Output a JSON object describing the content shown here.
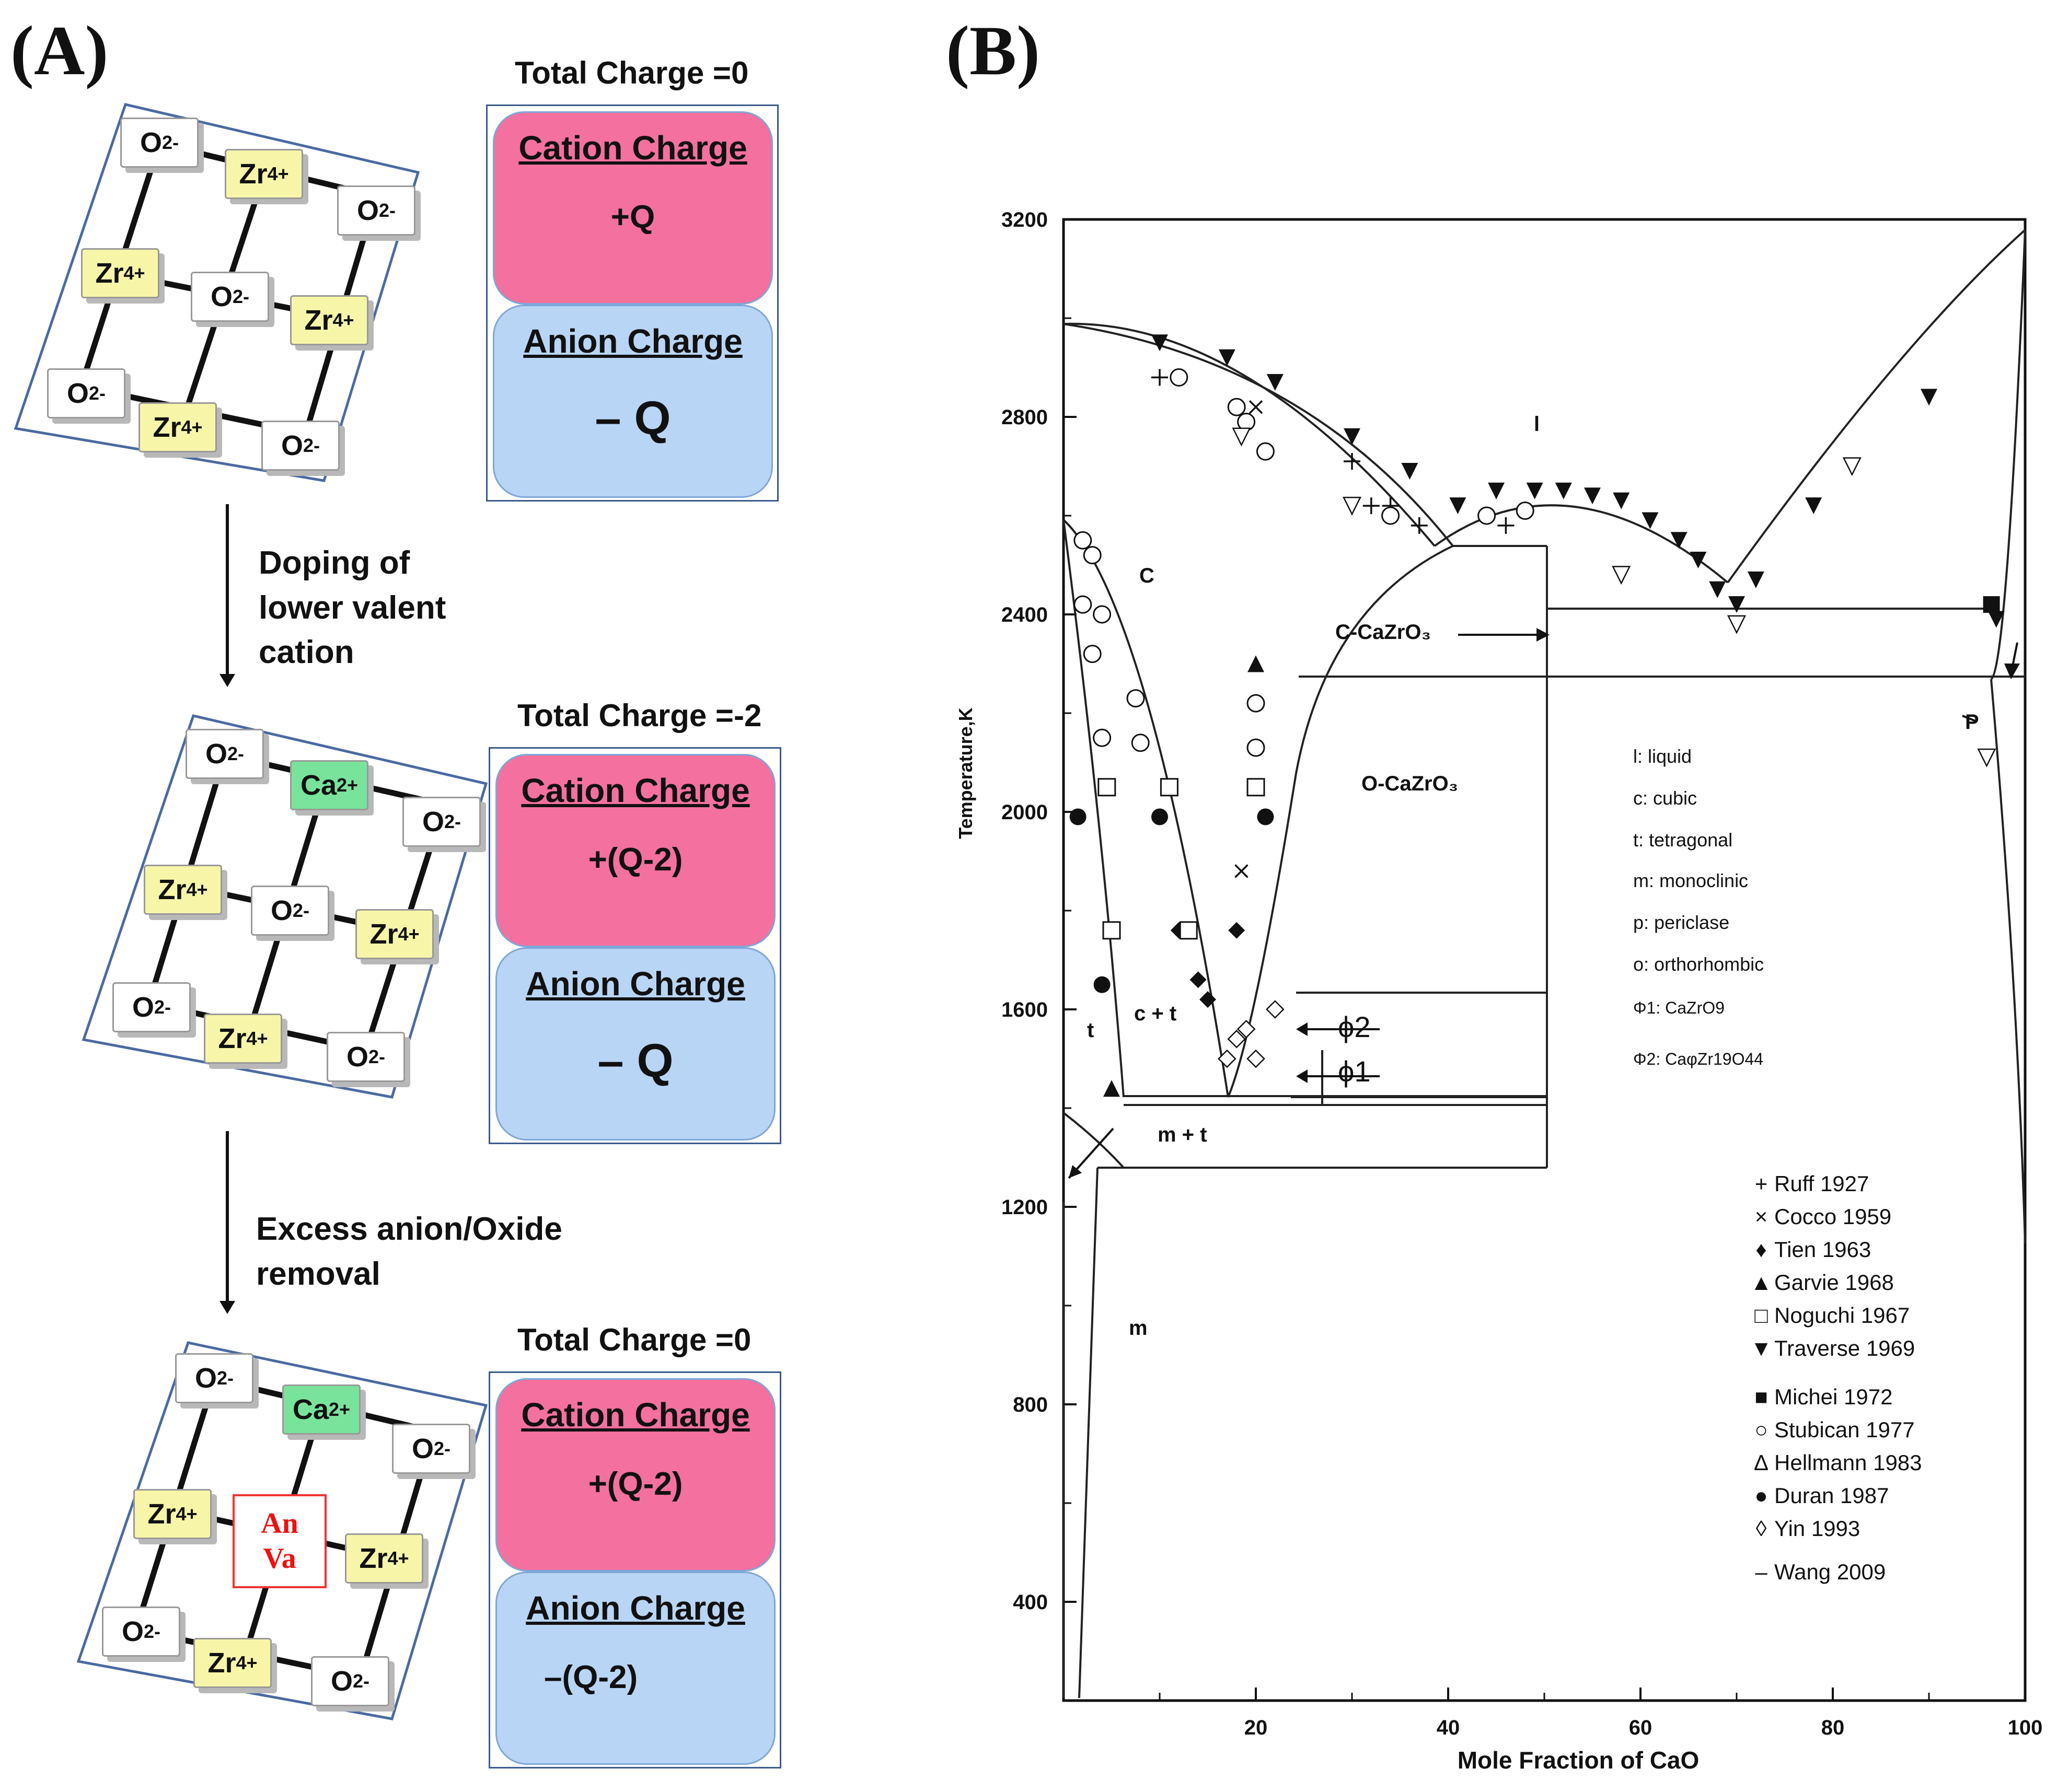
{
  "panel_a": {
    "label": "(A)",
    "o_ion": "O",
    "o_charge": "2-",
    "zr_ion": "Zr",
    "zr_charge": "4+",
    "ca_ion": "Ca",
    "ca_charge": "2+",
    "vacancy_line1": "An",
    "vacancy_line2": "Va",
    "states": [
      {
        "total": "Total Charge =0",
        "cation_title": "Cation Charge",
        "cation_value": "+Q",
        "anion_title": "Anion Charge",
        "anion_value": "– Q"
      },
      {
        "total": "Total Charge =-2",
        "cation_title": "Cation Charge",
        "cation_value": "+(Q-2)",
        "anion_title": "Anion Charge",
        "anion_value": "– Q"
      },
      {
        "total": "Total Charge =0",
        "cation_title": "Cation Charge",
        "cation_value": "+(Q-2)",
        "anion_title": "Anion Charge",
        "anion_value": "–(Q-2)"
      }
    ],
    "step1_lines": [
      "Doping of",
      "lower valent",
      "cation"
    ],
    "step2_lines": [
      "Excess anion/Oxide",
      "removal"
    ]
  },
  "panel_b": {
    "label": "(B)",
    "phase_legend": {
      "l": "l: liquid",
      "c": "c: cubic",
      "t": "t: tetragonal",
      "m": "m: monoclinic",
      "p": "p: periclase",
      "o": "o: orthorhombic",
      "phi1_prefix": "Φ1",
      "phi1_text": ": CaZrO9",
      "phi2_prefix": "Φ2",
      "phi2_text": ": CaφZr19O44"
    },
    "phase_labels": {
      "liquid": "l",
      "cubic": "C",
      "tetragonal": "t",
      "c_t": "c + t",
      "m_t": "m + t",
      "m": "m",
      "p": "P",
      "c_cazro3": "C-CaZrO₃",
      "o_cazro3": "O-CaZrO₃",
      "phi2": "ϕ2",
      "phi1": "ϕ1"
    },
    "source_legend": [
      {
        "marker": "+",
        "label": "Ruff 1927"
      },
      {
        "marker": "×",
        "label": "Cocco 1959"
      },
      {
        "marker": "♦",
        "label": "Tien 1963"
      },
      {
        "marker": "▲",
        "label": "Garvie 1968"
      },
      {
        "marker": "□",
        "label": "Noguchi 1967"
      },
      {
        "marker": "▼",
        "label": "Traverse 1969"
      },
      {
        "marker": "■",
        "label": "Michei 1972"
      },
      {
        "marker": "○",
        "label": "Stubican 1977"
      },
      {
        "marker": "∆",
        "label": "Hellmann 1983"
      },
      {
        "marker": "●",
        "label": "Duran 1987"
      },
      {
        "marker": "◊",
        "label": "Yin 1993"
      },
      {
        "marker": "–",
        "label": "Wang 2009"
      }
    ]
  },
  "chart_data": {
    "type": "scatter",
    "title": "",
    "xlabel": "Mole Fraction of CaO",
    "ylabel": "Temperature,K",
    "xlim": [
      0,
      100
    ],
    "ylim": [
      200,
      3200
    ],
    "xticks": [
      20,
      40,
      60,
      80,
      100
    ],
    "yticks": [
      400,
      800,
      1200,
      1600,
      2000,
      2400,
      2800,
      3200
    ],
    "series": [
      {
        "name": "Ruff 1927",
        "marker": "plus",
        "points": [
          [
            10,
            2880
          ],
          [
            30,
            2710
          ],
          [
            32,
            2620
          ],
          [
            34,
            2620
          ],
          [
            37,
            2580
          ],
          [
            46,
            2580
          ]
        ]
      },
      {
        "name": "Cocco 1959",
        "marker": "x",
        "points": [
          [
            20,
            2820
          ],
          [
            18.5,
            1880
          ]
        ]
      },
      {
        "name": "Tien 1963",
        "marker": "diamond_filled",
        "points": [
          [
            12,
            1760
          ],
          [
            14,
            1660
          ],
          [
            15,
            1620
          ],
          [
            18,
            1760
          ]
        ]
      },
      {
        "name": "Garvie 1968",
        "marker": "triangle_up_filled",
        "points": [
          [
            5,
            1440
          ],
          [
            20,
            2300
          ]
        ]
      },
      {
        "name": "Noguchi 1967",
        "marker": "square_open",
        "points": [
          [
            4.5,
            2050
          ],
          [
            11,
            2050
          ],
          [
            5,
            1760
          ],
          [
            13,
            1760
          ],
          [
            20,
            2050
          ]
        ]
      },
      {
        "name": "Traverse 1969",
        "marker": "triangle_down_filled",
        "points": [
          [
            10,
            2950
          ],
          [
            17,
            2920
          ],
          [
            22,
            2870
          ],
          [
            30,
            2760
          ],
          [
            36,
            2690
          ],
          [
            41,
            2620
          ],
          [
            45,
            2650
          ],
          [
            49,
            2650
          ],
          [
            52,
            2650
          ],
          [
            55,
            2640
          ],
          [
            58,
            2630
          ],
          [
            61,
            2590
          ],
          [
            64,
            2550
          ],
          [
            66,
            2510
          ],
          [
            68,
            2450
          ],
          [
            70,
            2420
          ],
          [
            72,
            2470
          ],
          [
            78,
            2620
          ],
          [
            90,
            2840
          ],
          [
            97,
            2390
          ]
        ]
      },
      {
        "name": "Michei 1972",
        "marker": "square_filled",
        "points": [
          [
            96.5,
            2420
          ]
        ]
      },
      {
        "name": "Stubican 1977",
        "marker": "circle_open",
        "points": [
          [
            2,
            2550
          ],
          [
            3,
            2520
          ],
          [
            2,
            2420
          ],
          [
            4,
            2400
          ],
          [
            3,
            2320
          ],
          [
            4,
            2150
          ],
          [
            7.5,
            2230
          ],
          [
            8,
            2140
          ],
          [
            12,
            2880
          ],
          [
            18,
            2820
          ],
          [
            19,
            2790
          ],
          [
            21,
            2730
          ],
          [
            34,
            2600
          ],
          [
            44,
            2600
          ],
          [
            48,
            2610
          ],
          [
            20,
            2220
          ],
          [
            20,
            2130
          ]
        ]
      },
      {
        "name": "Hellmann 1983",
        "marker": "triangle_down_open",
        "points": [
          [
            18.5,
            2760
          ],
          [
            30,
            2620
          ],
          [
            58,
            2480
          ],
          [
            70,
            2380
          ],
          [
            82,
            2700
          ],
          [
            96,
            2110
          ]
        ]
      },
      {
        "name": "Duran 1987",
        "marker": "circle_filled",
        "points": [
          [
            1.5,
            1990
          ],
          [
            10,
            1990
          ],
          [
            4,
            1650
          ],
          [
            21,
            1990
          ]
        ]
      },
      {
        "name": "Yin 1993",
        "marker": "diamond_open",
        "points": [
          [
            17,
            1500
          ],
          [
            18,
            1540
          ],
          [
            19,
            1560
          ],
          [
            20,
            1500
          ],
          [
            22,
            1600
          ]
        ]
      }
    ]
  }
}
